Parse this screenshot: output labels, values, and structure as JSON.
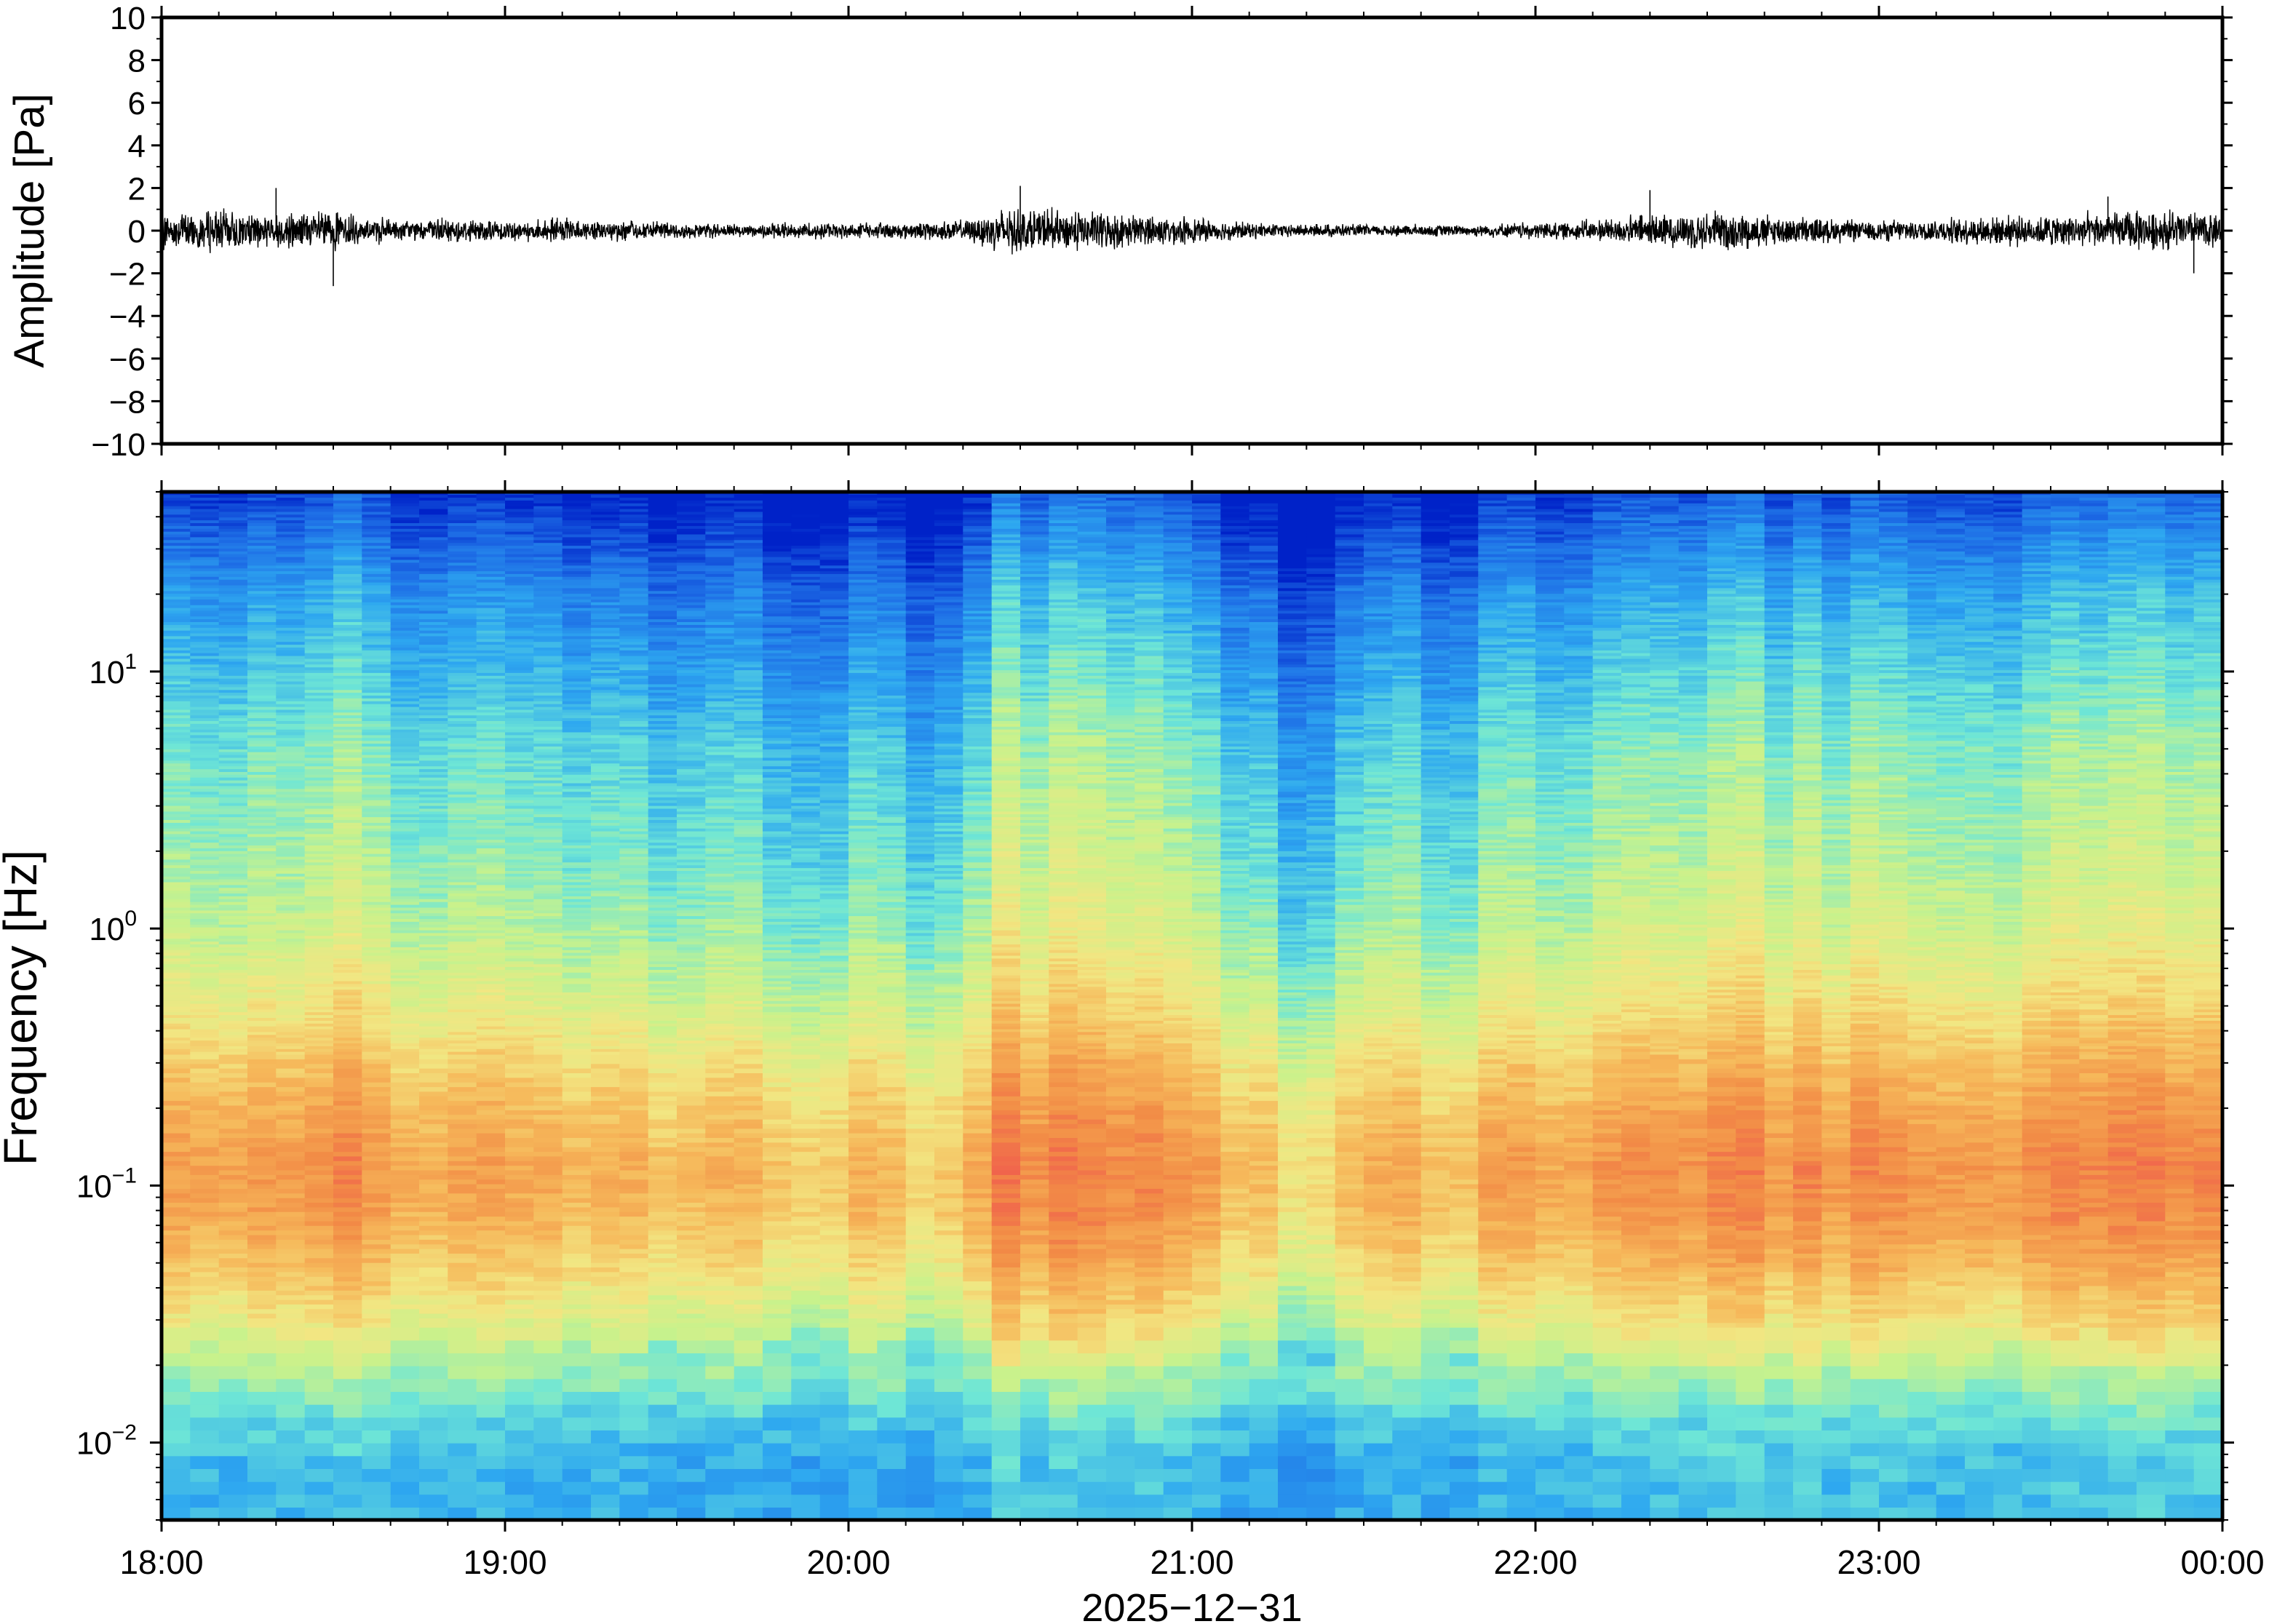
{
  "chart_data": [
    {
      "type": "line",
      "panel": "waveform",
      "ylabel": "Amplitude [Pa]",
      "xlabel": "",
      "ylim": [
        -10,
        10
      ],
      "yticks": [
        10,
        8,
        6,
        4,
        2,
        0,
        -2,
        -4,
        -6,
        -8,
        -10
      ],
      "ytick_labels": [
        "10",
        "8",
        "6",
        "4",
        "2",
        "0",
        "−2",
        "−4",
        "−6",
        "−8",
        "−10"
      ],
      "xlim": [
        "18:00",
        "00:00"
      ],
      "envelope": {
        "x": [
          "18:00",
          "18:10",
          "18:20",
          "18:30",
          "18:40",
          "18:50",
          "19:00",
          "19:10",
          "19:20",
          "19:30",
          "19:40",
          "19:50",
          "20:00",
          "20:10",
          "20:20",
          "20:25",
          "20:30",
          "20:40",
          "20:50",
          "21:00",
          "21:10",
          "21:20",
          "21:30",
          "21:40",
          "21:50",
          "22:00",
          "22:10",
          "22:20",
          "22:30",
          "22:40",
          "22:50",
          "23:00",
          "23:10",
          "23:20",
          "23:30",
          "23:40",
          "23:50",
          "00:00"
        ],
        "half_range_pa": [
          0.9,
          1.0,
          0.9,
          1.0,
          0.5,
          0.6,
          0.5,
          0.6,
          0.5,
          0.4,
          0.3,
          0.4,
          0.4,
          0.4,
          0.5,
          0.9,
          1.1,
          1.0,
          0.8,
          0.6,
          0.4,
          0.3,
          0.3,
          0.3,
          0.3,
          0.4,
          0.5,
          0.8,
          0.9,
          0.8,
          0.6,
          0.5,
          0.6,
          0.7,
          0.8,
          0.9,
          1.0,
          0.9
        ]
      },
      "peaks": [
        {
          "time": "18:20",
          "amplitude_pa": 2.0
        },
        {
          "time": "18:30",
          "amplitude_pa": -2.6
        },
        {
          "time": "20:30",
          "amplitude_pa": 2.1
        },
        {
          "time": "22:20",
          "amplitude_pa": 1.9
        },
        {
          "time": "23:40",
          "amplitude_pa": 1.6
        },
        {
          "time": "23:55",
          "amplitude_pa": -2.0
        }
      ],
      "grid": false
    },
    {
      "type": "heatmap",
      "panel": "spectrogram",
      "ylabel": "Frequency [Hz]",
      "xlabel": "2025−12−31",
      "yscale": "log",
      "ylim": [
        0.005,
        50
      ],
      "yticks": [
        0.01,
        0.1,
        1,
        10
      ],
      "ytick_labels": [
        {
          "base": "10",
          "exp": "−2"
        },
        {
          "base": "10",
          "exp": "−1"
        },
        {
          "base": "10",
          "exp": "0"
        },
        {
          "base": "10",
          "exp": "1"
        }
      ],
      "xticks": [
        "18:00",
        "19:00",
        "20:00",
        "21:00",
        "22:00",
        "23:00",
        "00:00"
      ],
      "colormap": "jet",
      "colormap_stops": [
        "#0022c8",
        "#1e6ee6",
        "#2ea8f0",
        "#6ee6d6",
        "#c8f28c",
        "#f2e682",
        "#f6b85a",
        "#f28c46",
        "#f05a4e"
      ],
      "relative_level_by_frequency": {
        "freq_hz": [
          0.005,
          0.008,
          0.012,
          0.02,
          0.03,
          0.05,
          0.08,
          0.12,
          0.2,
          0.3,
          0.5,
          1,
          2,
          5,
          10,
          20,
          50
        ],
        "level": [
          0.28,
          0.28,
          0.34,
          0.47,
          0.6,
          0.72,
          0.8,
          0.82,
          0.76,
          0.7,
          0.6,
          0.5,
          0.44,
          0.38,
          0.3,
          0.22,
          0.04
        ]
      },
      "relative_activity_by_time": {
        "time": [
          "18:00",
          "18:30",
          "19:00",
          "19:30",
          "20:00",
          "20:20",
          "20:25",
          "20:45",
          "21:00",
          "21:15",
          "21:30",
          "22:00",
          "22:15",
          "22:30",
          "23:00",
          "23:30",
          "00:00"
        ],
        "offset": [
          0.02,
          0.04,
          -0.04,
          -0.06,
          -0.08,
          -0.1,
          0.1,
          0.08,
          0.02,
          -0.14,
          -0.08,
          -0.02,
          0.0,
          0.08,
          0.02,
          0.04,
          0.06
        ]
      },
      "grid": false
    }
  ]
}
